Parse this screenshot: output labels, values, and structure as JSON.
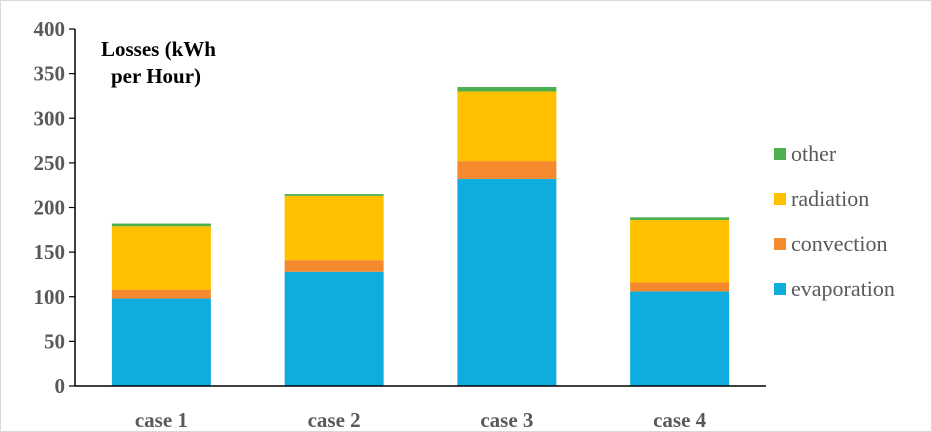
{
  "chart_data": {
    "type": "bar",
    "stacked": true,
    "title_lines": [
      "Losses (kWh",
      "per Hour)"
    ],
    "xlabel": "",
    "ylabel": "",
    "categories": [
      "case 1",
      "case 2",
      "case 3",
      "case 4"
    ],
    "ylim": [
      0,
      400
    ],
    "yticks": [
      "0",
      "50",
      "100",
      "150",
      "200",
      "250",
      "300",
      "350",
      "400"
    ],
    "grid": false,
    "legend_position": "right",
    "legend_order": [
      "other",
      "radiation",
      "convection",
      "evaporation"
    ],
    "series": [
      {
        "name": "evaporation",
        "color": "#0EADDE",
        "values": [
          98,
          128,
          232,
          106
        ]
      },
      {
        "name": "convection",
        "color": "#F4892E",
        "values": [
          10,
          13,
          20,
          10
        ]
      },
      {
        "name": "radiation",
        "color": "#FFC000",
        "values": [
          71,
          72,
          78,
          70
        ]
      },
      {
        "name": "other",
        "color": "#4CAF50",
        "values": [
          3,
          2,
          5,
          3
        ]
      }
    ]
  }
}
